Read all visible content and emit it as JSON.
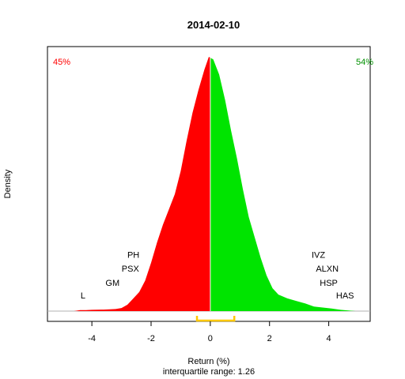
{
  "chart_data": {
    "type": "area",
    "title": "2014-02-10",
    "xlabel": "Return (%)",
    "ylabel": "Density",
    "subtitle": "interquartile range: 1.26",
    "xlim": [
      -5.5,
      5.4
    ],
    "ylim": [
      0,
      1
    ],
    "x_ticks": [
      -4,
      -2,
      0,
      2,
      4
    ],
    "x_tick_labels": [
      "-4",
      "-2",
      "0",
      "2",
      "4"
    ],
    "split_at": 0,
    "pct_negative_label": "45%",
    "pct_positive_label": "54%",
    "colors": {
      "negative": "#ff0000",
      "positive": "#00e400",
      "iqr": "#ffc800",
      "neg_text": "#ff0000",
      "pos_text": "#009000"
    },
    "iqr": [
      -0.45,
      0.81
    ],
    "density": [
      [
        -4.6,
        0.0
      ],
      [
        -4.4,
        0.004
      ],
      [
        -4.2,
        0.004
      ],
      [
        -4.0,
        0.005
      ],
      [
        -3.6,
        0.006
      ],
      [
        -3.2,
        0.008
      ],
      [
        -3.0,
        0.012
      ],
      [
        -2.8,
        0.025
      ],
      [
        -2.6,
        0.05
      ],
      [
        -2.4,
        0.075
      ],
      [
        -2.2,
        0.12
      ],
      [
        -2.0,
        0.19
      ],
      [
        -1.8,
        0.27
      ],
      [
        -1.6,
        0.34
      ],
      [
        -1.4,
        0.4
      ],
      [
        -1.2,
        0.46
      ],
      [
        -1.0,
        0.55
      ],
      [
        -0.8,
        0.67
      ],
      [
        -0.6,
        0.78
      ],
      [
        -0.4,
        0.87
      ],
      [
        -0.2,
        0.95
      ],
      [
        -0.05,
        1.0
      ],
      [
        0.1,
        0.99
      ],
      [
        0.3,
        0.93
      ],
      [
        0.5,
        0.83
      ],
      [
        0.7,
        0.71
      ],
      [
        0.9,
        0.6
      ],
      [
        1.1,
        0.48
      ],
      [
        1.3,
        0.37
      ],
      [
        1.5,
        0.29
      ],
      [
        1.7,
        0.21
      ],
      [
        1.9,
        0.14
      ],
      [
        2.1,
        0.09
      ],
      [
        2.3,
        0.065
      ],
      [
        2.6,
        0.05
      ],
      [
        2.9,
        0.04
      ],
      [
        3.2,
        0.03
      ],
      [
        3.5,
        0.018
      ],
      [
        3.8,
        0.014
      ],
      [
        4.1,
        0.01
      ],
      [
        4.4,
        0.005
      ],
      [
        4.7,
        0.002
      ],
      [
        4.9,
        0.0
      ]
    ],
    "annotations": [
      {
        "text": "L",
        "x": -4.3,
        "y": 0.05
      },
      {
        "text": "GM",
        "x": -3.3,
        "y": 0.1
      },
      {
        "text": "PSX",
        "x": -2.7,
        "y": 0.155
      },
      {
        "text": "PH",
        "x": -2.6,
        "y": 0.21
      },
      {
        "text": "IVZ",
        "x": 3.65,
        "y": 0.21
      },
      {
        "text": "ALXN",
        "x": 3.95,
        "y": 0.155
      },
      {
        "text": "HSP",
        "x": 4.0,
        "y": 0.1
      },
      {
        "text": "HAS",
        "x": 4.55,
        "y": 0.05
      }
    ]
  }
}
